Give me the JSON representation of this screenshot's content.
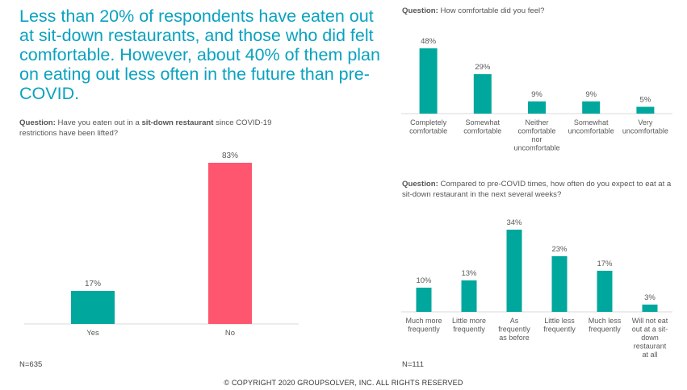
{
  "headline": "Less than 20% of respondents have eaten out at sit-down restaurants, and those who did felt comfortable. However, about 40% of them plan on eating out less often in the future than pre-COVID.",
  "colors": {
    "teal": "#00a79d",
    "pink": "#ff566f",
    "headline": "#0aa2c0"
  },
  "charts": {
    "left": {
      "question_prefix": "Question:",
      "question_before": " Have you eaten out in a ",
      "question_bold": "sit-down restaurant",
      "question_after": " since COVID-19 restrictions have been lifted?",
      "n_label": "N=635"
    },
    "top_right": {
      "question_prefix": "Question:",
      "question_text": " How comfortable did you feel?"
    },
    "bottom_right": {
      "question_prefix": "Question:",
      "question_text": " Compared to pre-COVID times, how often do you expect to eat at a sit-down restaurant in the next several weeks?",
      "n_label": "N=111"
    }
  },
  "copyright": "© COPYRIGHT 2020 GROUPSOLVER, INC. ALL RIGHTS RESERVED",
  "chart_data": [
    {
      "type": "bar",
      "categories": [
        "Yes",
        "No"
      ],
      "values": [
        17,
        83
      ],
      "labels": [
        "17%",
        "83%"
      ],
      "colors": [
        "#00a79d",
        "#ff566f"
      ],
      "ylim": [
        0,
        83
      ]
    },
    {
      "type": "bar",
      "categories": [
        "Completely comfortable",
        "Somewhat comfortable",
        "Neither comfortable nor uncomfortable",
        "Somewhat uncomfortable",
        "Very uncomfortable"
      ],
      "category_lines": [
        [
          "Completely",
          "comfortable"
        ],
        [
          "Somewhat",
          "comfortable"
        ],
        [
          "Neither",
          "comfortable",
          "nor",
          "uncomfortable"
        ],
        [
          "Somewhat",
          "uncomfortable"
        ],
        [
          "Very",
          "uncomfortable"
        ]
      ],
      "values": [
        48,
        29,
        9,
        9,
        5
      ],
      "labels": [
        "48%",
        "29%",
        "9%",
        "9%",
        "5%"
      ],
      "colors": [
        "#00a79d",
        "#00a79d",
        "#00a79d",
        "#00a79d",
        "#00a79d"
      ],
      "ylim": [
        0,
        48
      ]
    },
    {
      "type": "bar",
      "categories": [
        "Much more frequently",
        "Little more frequently",
        "As frequently as before",
        "Little less frequently",
        "Much less frequently",
        "Will not eat out at a sit-down restaurant at all"
      ],
      "category_lines": [
        [
          "Much more",
          "frequently"
        ],
        [
          "Little more",
          "frequently"
        ],
        [
          "As",
          "frequently",
          "as before"
        ],
        [
          "Little less",
          "frequently"
        ],
        [
          "Much less",
          "frequently"
        ],
        [
          "Will not eat",
          "out at a sit-",
          "down",
          "restaurant",
          "at all"
        ]
      ],
      "values": [
        10,
        13,
        34,
        23,
        17,
        3
      ],
      "labels": [
        "10%",
        "13%",
        "34%",
        "23%",
        "17%",
        "3%"
      ],
      "colors": [
        "#00a79d",
        "#00a79d",
        "#00a79d",
        "#00a79d",
        "#00a79d",
        "#00a79d"
      ],
      "ylim": [
        0,
        34
      ]
    }
  ]
}
